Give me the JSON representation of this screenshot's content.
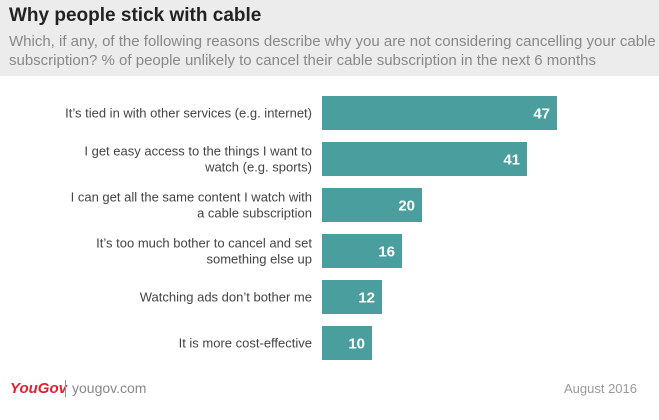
{
  "header": {
    "title": "Why people stick with cable",
    "subtitle": "Which, if any, of the following reasons describe why you are not considering cancelling your cable subscription? % of people unlikely to cancel their cable subscription in the next 6 months"
  },
  "chart_data": {
    "type": "bar",
    "orientation": "horizontal",
    "categories": [
      [
        "It’s tied in with other services (e.g. internet)"
      ],
      [
        "I get easy access to the things I want to",
        "watch (e.g. sports)"
      ],
      [
        "I can get all the same content I watch with",
        "a cable subscription"
      ],
      [
        "It’s too much bother to cancel and set",
        "something else up"
      ],
      [
        "Watching ads don’t bother me"
      ],
      [
        "It is more cost-effective"
      ]
    ],
    "values": [
      47,
      41,
      20,
      16,
      12,
      10
    ],
    "data_labels": [
      "47",
      "41",
      "20",
      "16",
      "12",
      "10"
    ],
    "bar_color": "#4a9e9e",
    "xlim": [
      0,
      52
    ]
  },
  "footer": {
    "logo": "YouGov",
    "site": "yougov.com",
    "date": "August 2016"
  }
}
